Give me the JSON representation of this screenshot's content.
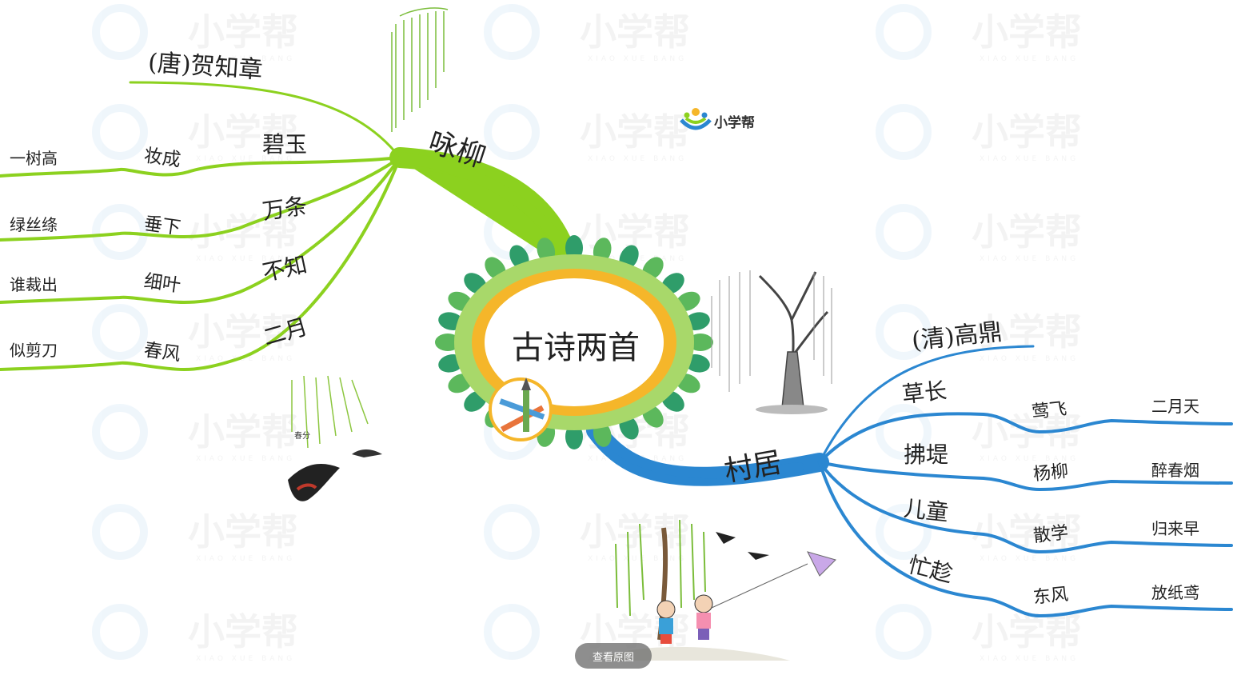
{
  "watermark": {
    "text": "小学帮",
    "sub": "XIAO XUE BANG"
  },
  "logo": {
    "text": "小学帮"
  },
  "center": {
    "title": "古诗两首"
  },
  "colors": {
    "poem1_branch": "#8cd11f",
    "poem2_branch": "#2b87d1",
    "petal_green": "#2f9d6a",
    "ring_yellow": "#f5b62a",
    "ring_light": "#a8d86a"
  },
  "poem1": {
    "title": "咏柳",
    "author": "(唐)贺知章",
    "lines": [
      {
        "first": "碧玉",
        "second": "妆成",
        "third": "一树高"
      },
      {
        "first": "万条",
        "second": "垂下",
        "third": "绿丝绦"
      },
      {
        "first": "不知",
        "second": "细叶",
        "third": "谁裁出"
      },
      {
        "first": "二月",
        "second": "春风",
        "third": "似剪刀"
      }
    ]
  },
  "poem2": {
    "title": "村居",
    "author": "(清)高鼎",
    "lines": [
      {
        "first": "草长",
        "second": "莺飞",
        "third": "二月天"
      },
      {
        "first": "拂堤",
        "second": "杨柳",
        "third": "醉春烟"
      },
      {
        "first": "儿童",
        "second": "散学",
        "third": "归来早"
      },
      {
        "first": "忙趁",
        "second": "东风",
        "third": "放纸鸢"
      }
    ]
  },
  "illustration": {
    "spring_label": "春分"
  },
  "button": {
    "view_original": "查看原图"
  }
}
